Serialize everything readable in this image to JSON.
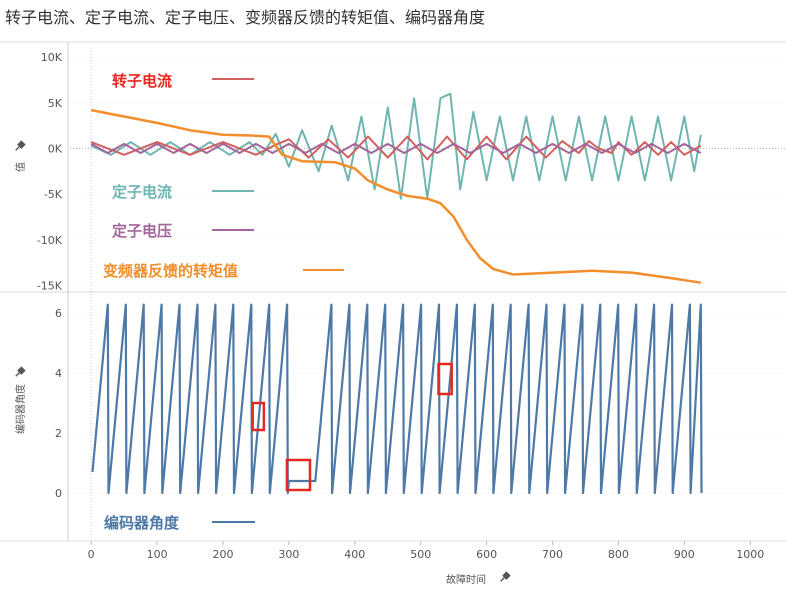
{
  "title": "转子电流、定子电流、定子电压、变频器反馈的转矩值、编码器角度",
  "chart_data": [
    {
      "type": "line",
      "panel": "top",
      "ylabel": "值",
      "y_ticks": [
        {
          "value": 10000,
          "label": "10K"
        },
        {
          "value": 5000,
          "label": "5K"
        },
        {
          "value": 0,
          "label": "0K"
        },
        {
          "value": -5000,
          "label": "-5K"
        },
        {
          "value": -10000,
          "label": "-10K"
        },
        {
          "value": -15000,
          "label": "-15K"
        }
      ],
      "ylim": [
        -15500,
        11000
      ],
      "grid": "dotted",
      "legend_placement": "inside-left",
      "series": [
        {
          "name": "转子电流",
          "color": "#d1605e",
          "points": [
            [
              0,
              700
            ],
            [
              50,
              -700
            ],
            [
              100,
              700
            ],
            [
              150,
              -700
            ],
            [
              200,
              700
            ],
            [
              250,
              -700
            ],
            [
              280,
              400
            ],
            [
              300,
              1000
            ],
            [
              330,
              -1000
            ],
            [
              360,
              1000
            ],
            [
              390,
              -1000
            ],
            [
              420,
              1300
            ],
            [
              450,
              -1000
            ],
            [
              480,
              1300
            ],
            [
              510,
              -1200
            ],
            [
              540,
              1300
            ],
            [
              570,
              -1200
            ],
            [
              600,
              1300
            ],
            [
              630,
              -1200
            ],
            [
              660,
              1300
            ],
            [
              690,
              -1000
            ],
            [
              715,
              800
            ],
            [
              730,
              0
            ],
            [
              740,
              -500
            ],
            [
              755,
              800
            ],
            [
              770,
              0
            ],
            [
              790,
              -500
            ],
            [
              800,
              700
            ],
            [
              820,
              -700
            ],
            [
              840,
              700
            ],
            [
              860,
              -700
            ],
            [
              880,
              700
            ],
            [
              900,
              -700
            ],
            [
              925,
              300
            ]
          ]
        },
        {
          "name": "定子电流",
          "color": "#6fb5b1",
          "points": [
            [
              0,
              300
            ],
            [
              30,
              -700
            ],
            [
              60,
              700
            ],
            [
              90,
              -700
            ],
            [
              120,
              700
            ],
            [
              150,
              -700
            ],
            [
              180,
              700
            ],
            [
              210,
              -700
            ],
            [
              240,
              700
            ],
            [
              260,
              -700
            ],
            [
              280,
              1600
            ],
            [
              300,
              -2000
            ],
            [
              320,
              2000
            ],
            [
              345,
              -2500
            ],
            [
              365,
              2500
            ],
            [
              390,
              -3500
            ],
            [
              410,
              3500
            ],
            [
              430,
              -4500
            ],
            [
              450,
              4500
            ],
            [
              470,
              -5500
            ],
            [
              490,
              5500
            ],
            [
              510,
              -5500
            ],
            [
              530,
              5500
            ],
            [
              545,
              6000
            ],
            [
              560,
              -4500
            ],
            [
              580,
              4000
            ],
            [
              600,
              -3500
            ],
            [
              620,
              3500
            ],
            [
              640,
              -3500
            ],
            [
              660,
              3500
            ],
            [
              680,
              -3500
            ],
            [
              700,
              3500
            ],
            [
              720,
              -3500
            ],
            [
              740,
              3500
            ],
            [
              760,
              -3500
            ],
            [
              780,
              3500
            ],
            [
              800,
              -3500
            ],
            [
              820,
              3500
            ],
            [
              840,
              -3500
            ],
            [
              860,
              3500
            ],
            [
              880,
              -3500
            ],
            [
              900,
              3500
            ],
            [
              915,
              -2500
            ],
            [
              925,
              1500
            ]
          ]
        },
        {
          "name": "定子电压",
          "color": "#a3669a",
          "points": [
            [
              0,
              500
            ],
            [
              25,
              -500
            ],
            [
              50,
              500
            ],
            [
              75,
              -500
            ],
            [
              100,
              500
            ],
            [
              125,
              -500
            ],
            [
              150,
              500
            ],
            [
              175,
              -500
            ],
            [
              200,
              500
            ],
            [
              225,
              -500
            ],
            [
              250,
              500
            ],
            [
              275,
              -500
            ],
            [
              300,
              500
            ],
            [
              325,
              -500
            ],
            [
              350,
              500
            ],
            [
              375,
              -500
            ],
            [
              400,
              500
            ],
            [
              425,
              -500
            ],
            [
              450,
              500
            ],
            [
              475,
              -500
            ],
            [
              500,
              500
            ],
            [
              525,
              -500
            ],
            [
              550,
              500
            ],
            [
              575,
              -500
            ],
            [
              600,
              500
            ],
            [
              625,
              -500
            ],
            [
              650,
              500
            ],
            [
              675,
              -500
            ],
            [
              700,
              500
            ],
            [
              725,
              -500
            ],
            [
              750,
              500
            ],
            [
              775,
              -500
            ],
            [
              800,
              500
            ],
            [
              825,
              -500
            ],
            [
              850,
              500
            ],
            [
              875,
              -500
            ],
            [
              900,
              500
            ],
            [
              925,
              -500
            ]
          ]
        },
        {
          "name": "变频器反馈的转矩值",
          "color": "#f28e2b",
          "points": [
            [
              0,
              4200
            ],
            [
              50,
              3500
            ],
            [
              100,
              2800
            ],
            [
              150,
              2000
            ],
            [
              200,
              1500
            ],
            [
              250,
              1400
            ],
            [
              270,
              1300
            ],
            [
              290,
              -700
            ],
            [
              320,
              -1400
            ],
            [
              370,
              -1500
            ],
            [
              400,
              -2200
            ],
            [
              420,
              -3500
            ],
            [
              450,
              -4500
            ],
            [
              480,
              -5200
            ],
            [
              510,
              -5500
            ],
            [
              530,
              -6000
            ],
            [
              550,
              -7500
            ],
            [
              570,
              -10000
            ],
            [
              590,
              -12000
            ],
            [
              610,
              -13200
            ],
            [
              640,
              -13800
            ],
            [
              700,
              -13600
            ],
            [
              760,
              -13400
            ],
            [
              820,
              -13600
            ],
            [
              880,
              -14200
            ],
            [
              925,
              -14700
            ]
          ]
        }
      ]
    },
    {
      "type": "line",
      "panel": "bottom",
      "xlabel": "故障时间",
      "ylabel": "编码器角度",
      "x_ticks": [
        0,
        100,
        200,
        300,
        400,
        500,
        600,
        700,
        800,
        900,
        1000
      ],
      "xlim": [
        -20,
        1030
      ],
      "y_ticks": [
        0,
        2,
        4,
        6
      ],
      "ylim": [
        -0.5,
        6.5
      ],
      "grid": "dotted",
      "legend_placement": "bottom-left",
      "series": [
        {
          "name": "编码器角度",
          "color": "#4e79a7",
          "sawtooth": {
            "start_x": 2,
            "end_x": 925,
            "period": 26.2,
            "max": 6.28,
            "start_value": 0.7,
            "flat_segment": [
              300,
              340
            ]
          }
        }
      ],
      "highlight_boxes": [
        {
          "x": [
            245,
            262
          ],
          "y": [
            2.1,
            3.0
          ]
        },
        {
          "x": [
            297,
            332
          ],
          "y": [
            0.1,
            1.1
          ]
        },
        {
          "x": [
            527,
            547
          ],
          "y": [
            3.3,
            4.3
          ]
        }
      ],
      "highlight_color": "#e5281f"
    }
  ]
}
